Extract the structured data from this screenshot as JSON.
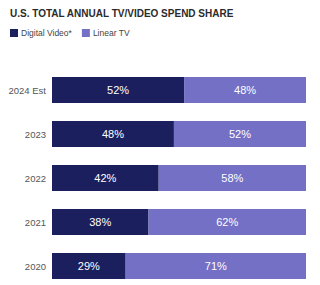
{
  "chart_data": {
    "type": "bar",
    "title": "U.S. TOTAL ANNUAL TV/VIDEO SPEND SHARE",
    "categories": [
      "2024 Est",
      "2023",
      "2022",
      "2021",
      "2020"
    ],
    "series": [
      {
        "name": "Digital Video*",
        "color": "#1c1f5e",
        "values": [
          52,
          48,
          42,
          38,
          29
        ],
        "value_labels": [
          "52%",
          "48%",
          "42%",
          "38%",
          "29%"
        ]
      },
      {
        "name": "Linear TV",
        "color": "#7370c6",
        "values": [
          48,
          52,
          58,
          62,
          71
        ],
        "value_labels": [
          "48%",
          "52%",
          "58%",
          "62%",
          "71%"
        ]
      }
    ],
    "xlim": [
      0,
      100
    ],
    "orientation": "horizontal",
    "stacked": true,
    "data_labels": true,
    "legend": "top-left",
    "tick_labels": "y",
    "grid": false
  }
}
